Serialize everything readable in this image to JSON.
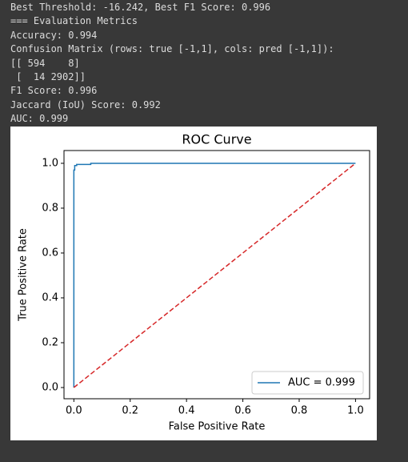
{
  "output_lines": [
    "Best Threshold: -16.242, Best F1 Score: 0.996",
    "=== Evaluation Metrics",
    "Accuracy: 0.994",
    "Confusion Matrix (rows: true [-1,1], cols: pred [-1,1]):",
    "[[ 594    8]",
    " [  14 2902]]",
    "F1 Score: 0.996",
    "Jaccard (IoU) Score: 0.992",
    "AUC: 0.999"
  ],
  "chart_data": {
    "type": "line",
    "title": "ROC Curve",
    "x_label": "False Positive Rate",
    "y_label": "True Positive Rate",
    "xlim": [
      -0.035,
      1.05
    ],
    "ylim": [
      -0.05,
      1.057
    ],
    "xticks": [
      {
        "value": 0,
        "label": "0.0"
      },
      0.2,
      0.4,
      0.6,
      0.8,
      {
        "value": 1,
        "label": "1.0"
      }
    ],
    "yticks": [
      {
        "value": 0,
        "label": "0.0"
      },
      0.2,
      0.4,
      0.6,
      0.8,
      {
        "value": 1,
        "label": "1.0"
      }
    ],
    "legend": "lower right",
    "series": [
      {
        "name": "AUC = 0.999",
        "color": "#1f77b4",
        "linestyle": "solid",
        "x": [
          0,
          0,
          0.003,
          0.003,
          0.01,
          0.01,
          0.06,
          0.06,
          1
        ],
        "values": [
          0,
          0.97,
          0.97,
          0.99,
          0.99,
          0.995,
          0.995,
          1,
          1
        ]
      },
      {
        "color": "#d62728",
        "linestyle": "dashed",
        "x": [
          0,
          1
        ],
        "values": [
          0,
          1
        ]
      }
    ]
  }
}
